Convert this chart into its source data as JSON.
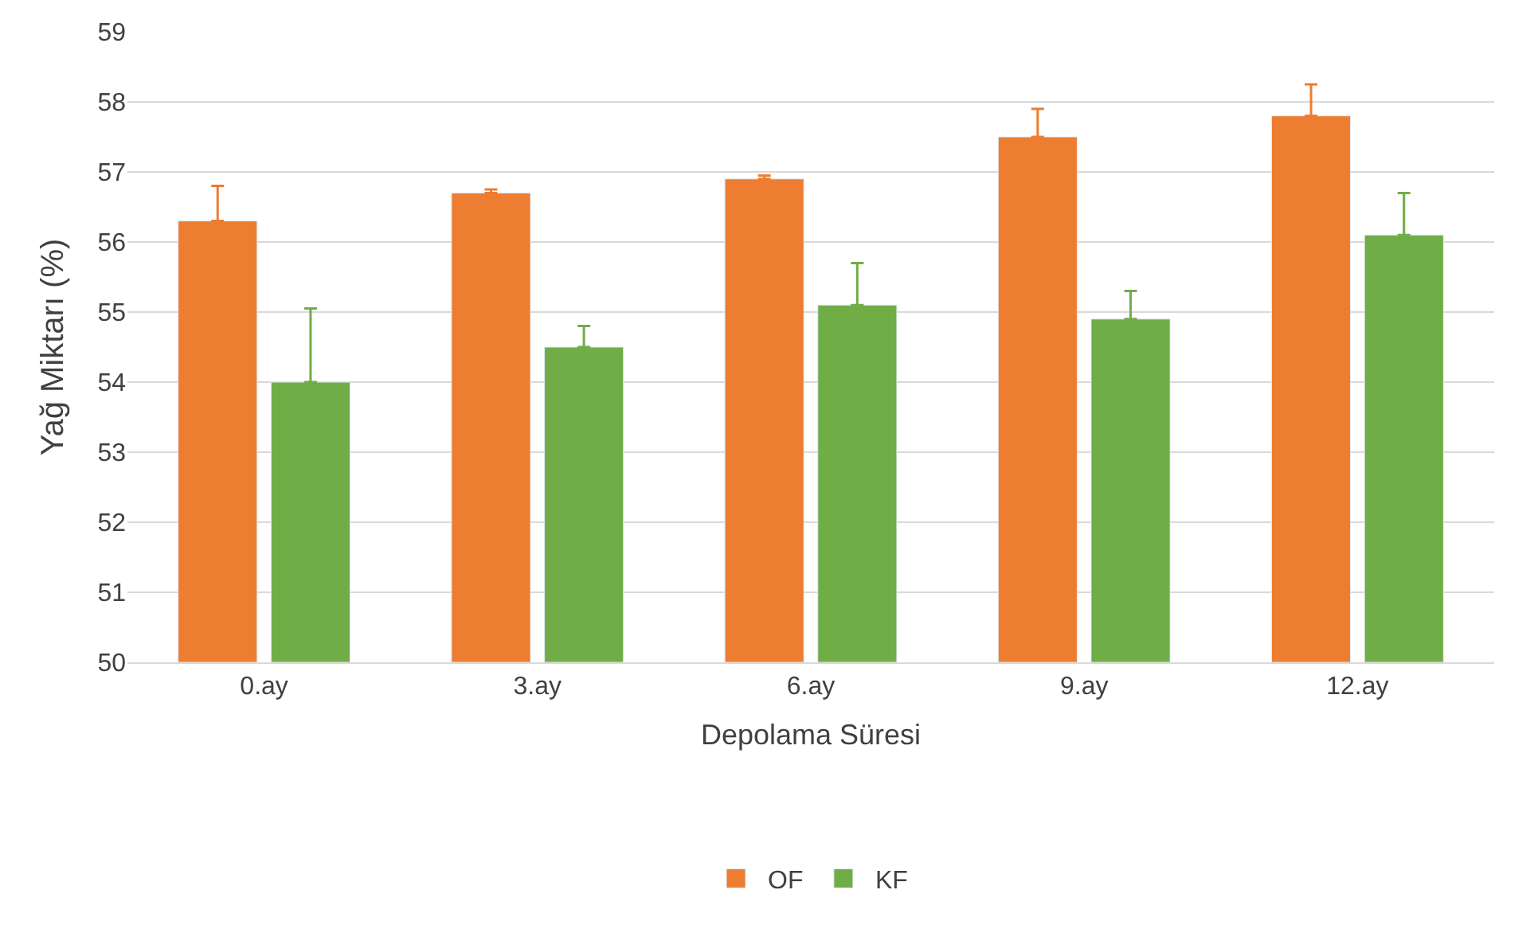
{
  "chart_data": {
    "type": "bar",
    "xlabel": "Depolama Süresi",
    "ylabel": "Yağ Miktarı (%)",
    "categories": [
      "0.ay",
      "3.ay",
      "6.ay",
      "9.ay",
      "12.ay"
    ],
    "series": [
      {
        "name": "OF",
        "color": "#ed7d31",
        "values": [
          56.3,
          56.7,
          56.9,
          57.5,
          57.8
        ],
        "errors": [
          [
            56.3,
            56.8
          ],
          [
            56.7,
            56.75
          ],
          [
            56.9,
            56.95
          ],
          [
            57.5,
            57.9
          ],
          [
            57.8,
            58.25
          ]
        ]
      },
      {
        "name": "KF",
        "color": "#70ad47",
        "values": [
          54.0,
          54.5,
          55.1,
          54.9,
          56.1
        ],
        "errors": [
          [
            54.0,
            55.05
          ],
          [
            54.5,
            54.8
          ],
          [
            55.1,
            55.7
          ],
          [
            54.9,
            55.3
          ],
          [
            56.1,
            56.7
          ]
        ]
      }
    ],
    "ylim": [
      50,
      59
    ],
    "yticks": [
      50,
      51,
      52,
      53,
      54,
      55,
      56,
      57,
      58,
      59
    ],
    "grid": "y",
    "legend": "bottom"
  }
}
